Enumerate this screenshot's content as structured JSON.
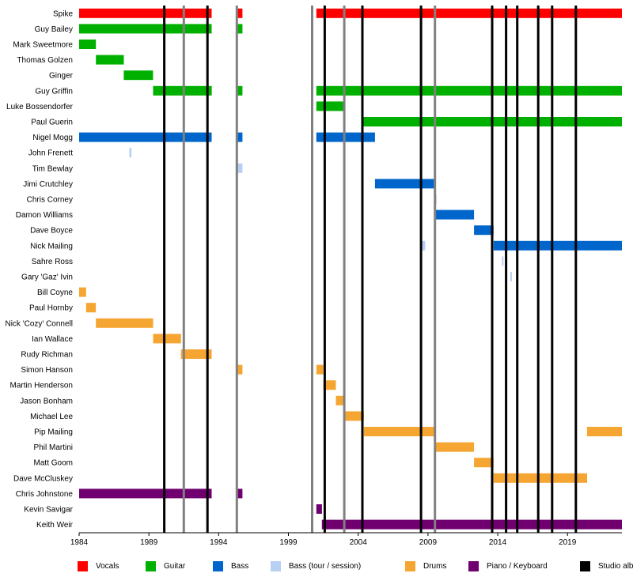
{
  "chart_data": {
    "type": "timeline",
    "title": "",
    "xlabel": "",
    "ylabel": "",
    "x_ticks": [
      1984,
      1989,
      1994,
      1999,
      2004,
      2009,
      2014,
      2019
    ],
    "xlim": [
      1984,
      2022.9
    ],
    "grid": false,
    "legend_position": "bottom",
    "colors": {
      "vocals": "#ff0000",
      "guitar": "#00b000",
      "bass": "#0066cc",
      "bass_session": "#b8d0f4",
      "drums": "#f5a632",
      "keys": "#700070",
      "album": "#000000",
      "other": "#808080"
    },
    "legend": [
      {
        "label": "Vocals",
        "role": "vocals"
      },
      {
        "label": "Guitar",
        "role": "guitar"
      },
      {
        "label": "Bass",
        "role": "bass"
      },
      {
        "label": "Bass (tour / session)",
        "role": "bass_session"
      },
      {
        "label": "Drums",
        "role": "drums"
      },
      {
        "label": "Piano / Keyboard",
        "role": "keys"
      },
      {
        "label": "Studio alb",
        "role": "album"
      }
    ],
    "members": [
      {
        "name": "Spike",
        "bars": [
          {
            "role": "vocals",
            "start": 1984.0,
            "end": 1993.5
          },
          {
            "role": "vocals",
            "start": 1995.3,
            "end": 1995.7
          },
          {
            "role": "vocals",
            "start": 2001.0,
            "end": 2022.9
          }
        ]
      },
      {
        "name": "Guy Bailey",
        "bars": [
          {
            "role": "guitar",
            "start": 1984.0,
            "end": 1993.5
          },
          {
            "role": "guitar",
            "start": 1995.3,
            "end": 1995.7
          }
        ]
      },
      {
        "name": "Mark Sweetmore",
        "bars": [
          {
            "role": "guitar",
            "start": 1984.0,
            "end": 1985.2
          }
        ]
      },
      {
        "name": "Thomas Golzen",
        "bars": [
          {
            "role": "guitar",
            "start": 1985.2,
            "end": 1987.2
          }
        ]
      },
      {
        "name": "Ginger",
        "bars": [
          {
            "role": "guitar",
            "start": 1987.2,
            "end": 1989.3
          }
        ]
      },
      {
        "name": "Guy Griffin",
        "bars": [
          {
            "role": "guitar",
            "start": 1989.3,
            "end": 1993.5
          },
          {
            "role": "guitar",
            "start": 1995.3,
            "end": 1995.7
          },
          {
            "role": "guitar",
            "start": 2001.0,
            "end": 2022.9
          }
        ]
      },
      {
        "name": "Luke Bossendorfer",
        "bars": [
          {
            "role": "guitar",
            "start": 2001.0,
            "end": 2003.0
          }
        ]
      },
      {
        "name": "Paul Guerin",
        "bars": [
          {
            "role": "guitar",
            "start": 2004.3,
            "end": 2022.9
          }
        ]
      },
      {
        "name": "Nigel Mogg",
        "bars": [
          {
            "role": "bass",
            "start": 1984.0,
            "end": 1993.5
          },
          {
            "role": "bass",
            "start": 1995.3,
            "end": 1995.7
          },
          {
            "role": "bass",
            "start": 2001.0,
            "end": 2005.2
          }
        ]
      },
      {
        "name": "John Frenett",
        "bars": [
          {
            "role": "bass_session",
            "start": 1987.6,
            "end": 1987.75
          }
        ]
      },
      {
        "name": "Tim Bewlay",
        "bars": [
          {
            "role": "bass_session",
            "start": 1995.3,
            "end": 1995.7
          }
        ]
      },
      {
        "name": "Jimi Crutchley",
        "bars": [
          {
            "role": "bass",
            "start": 2005.2,
            "end": 2009.5
          }
        ]
      },
      {
        "name": "Chris Corney",
        "bars": [
          {
            "role": "bass_session",
            "start": 2009.5,
            "end": 2009.6
          }
        ]
      },
      {
        "name": "Damon Williams",
        "bars": [
          {
            "role": "bass",
            "start": 2009.5,
            "end": 2012.3
          }
        ]
      },
      {
        "name": "Dave Boyce",
        "bars": [
          {
            "role": "bass",
            "start": 2012.3,
            "end": 2013.7
          }
        ]
      },
      {
        "name": "Nick Mailing",
        "bars": [
          {
            "role": "bass_session",
            "start": 2008.5,
            "end": 2008.8
          },
          {
            "role": "bass",
            "start": 2013.7,
            "end": 2022.9
          }
        ]
      },
      {
        "name": "Sahre Ross",
        "bars": [
          {
            "role": "bass_session",
            "start": 2014.3,
            "end": 2014.4
          }
        ]
      },
      {
        "name": "Gary 'Gaz' Ivin",
        "bars": [
          {
            "role": "bass_session",
            "start": 2014.9,
            "end": 2015.0
          }
        ]
      },
      {
        "name": "Bill Coyne",
        "bars": [
          {
            "role": "drums",
            "start": 1984.0,
            "end": 1984.5
          }
        ]
      },
      {
        "name": "Paul Hornby",
        "bars": [
          {
            "role": "drums",
            "start": 1984.5,
            "end": 1985.2
          }
        ]
      },
      {
        "name": "Nick 'Cozy' Connell",
        "bars": [
          {
            "role": "drums",
            "start": 1985.2,
            "end": 1989.3
          }
        ]
      },
      {
        "name": "Ian Wallace",
        "bars": [
          {
            "role": "drums",
            "start": 1989.3,
            "end": 1991.3
          }
        ]
      },
      {
        "name": "Rudy Richman",
        "bars": [
          {
            "role": "drums",
            "start": 1991.3,
            "end": 1993.5
          }
        ]
      },
      {
        "name": "Simon Hanson",
        "bars": [
          {
            "role": "drums",
            "start": 1995.3,
            "end": 1995.7
          },
          {
            "role": "drums",
            "start": 2001.0,
            "end": 2001.5
          }
        ]
      },
      {
        "name": "Martin Henderson",
        "bars": [
          {
            "role": "drums",
            "start": 2001.5,
            "end": 2002.4
          }
        ]
      },
      {
        "name": "Jason Bonham",
        "bars": [
          {
            "role": "drums",
            "start": 2002.4,
            "end": 2003.0
          }
        ]
      },
      {
        "name": "Michael Lee",
        "bars": [
          {
            "role": "drums",
            "start": 2003.0,
            "end": 2004.4
          }
        ]
      },
      {
        "name": "Pip Mailing",
        "bars": [
          {
            "role": "drums",
            "start": 2004.4,
            "end": 2009.5
          },
          {
            "role": "drums",
            "start": 2020.4,
            "end": 2022.9
          }
        ]
      },
      {
        "name": "Phil Martini",
        "bars": [
          {
            "role": "drums",
            "start": 2009.5,
            "end": 2012.3
          }
        ]
      },
      {
        "name": "Matt Goom",
        "bars": [
          {
            "role": "drums",
            "start": 2012.3,
            "end": 2013.7
          }
        ]
      },
      {
        "name": "Dave McCluskey",
        "bars": [
          {
            "role": "drums",
            "start": 2013.7,
            "end": 2020.4
          }
        ]
      },
      {
        "name": "Chris Johnstone",
        "bars": [
          {
            "role": "keys",
            "start": 1984.0,
            "end": 1993.5
          },
          {
            "role": "keys",
            "start": 1995.3,
            "end": 1995.7
          }
        ]
      },
      {
        "name": "Kevin Savigar",
        "bars": [
          {
            "role": "keys",
            "start": 2001.0,
            "end": 2001.4
          }
        ]
      },
      {
        "name": "Keith Weir",
        "bars": [
          {
            "role": "keys",
            "start": 2001.4,
            "end": 2022.9
          }
        ]
      }
    ],
    "event_lines": [
      {
        "year": 1990.1,
        "role": "album"
      },
      {
        "year": 1991.5,
        "role": "other"
      },
      {
        "year": 1993.2,
        "role": "album"
      },
      {
        "year": 1995.3,
        "role": "other"
      },
      {
        "year": 2000.7,
        "role": "other"
      },
      {
        "year": 2001.6,
        "role": "album"
      },
      {
        "year": 2003.0,
        "role": "other"
      },
      {
        "year": 2004.3,
        "role": "album"
      },
      {
        "year": 2008.5,
        "role": "album"
      },
      {
        "year": 2009.5,
        "role": "other"
      },
      {
        "year": 2013.6,
        "role": "album"
      },
      {
        "year": 2014.6,
        "role": "album"
      },
      {
        "year": 2015.4,
        "role": "album"
      },
      {
        "year": 2016.9,
        "role": "album"
      },
      {
        "year": 2017.9,
        "role": "album"
      },
      {
        "year": 2019.6,
        "role": "album"
      }
    ]
  }
}
